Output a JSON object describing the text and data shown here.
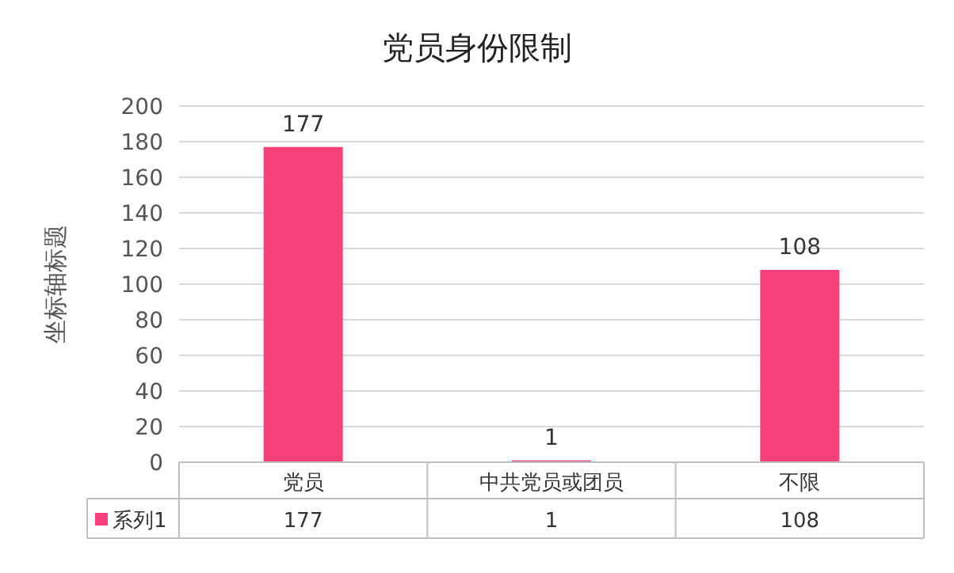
{
  "chart_data": {
    "type": "bar",
    "title": "党员身份限制",
    "ylabel": "坐标轴标题",
    "categories": [
      "党员",
      "中共党员或团员",
      "不限"
    ],
    "series": [
      {
        "name": "系列1",
        "color": "#f5407a",
        "values": [
          177,
          1,
          108
        ],
        "value_labels": [
          "177",
          "1",
          "108"
        ]
      }
    ],
    "ylim": [
      0,
      200
    ],
    "yticks": [
      0,
      20,
      40,
      60,
      80,
      100,
      120,
      140,
      160,
      180,
      200
    ],
    "annotations": [
      "177",
      "1",
      "108"
    ],
    "grid": "y",
    "data_labels": true,
    "legend": "bottom"
  }
}
